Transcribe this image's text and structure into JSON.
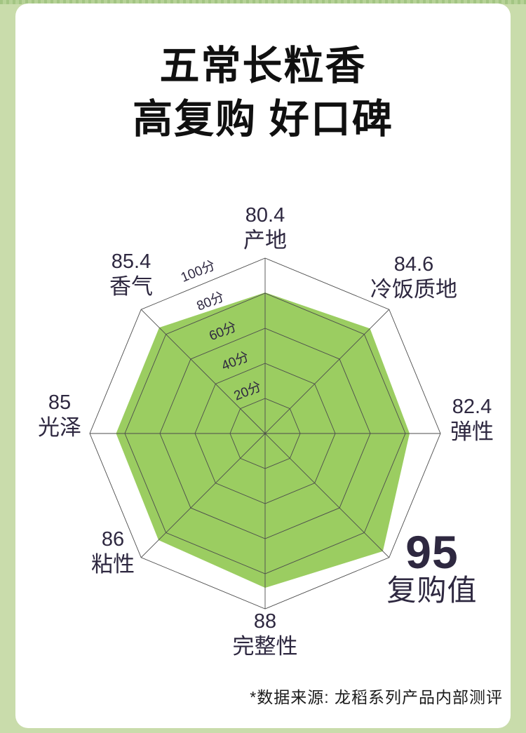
{
  "page": {
    "background_color": "#c9dcab",
    "card_color": "#ffffff"
  },
  "header": {
    "title_line1": "五常长粒香",
    "title_line2": "高复购 好口碑"
  },
  "footnote": "*数据来源: 龙稻系列产品内部测评",
  "chart_data": {
    "type": "radar",
    "title": "",
    "categories": [
      "产地",
      "冷饭质地",
      "弹性",
      "复购值",
      "完整性",
      "粘性",
      "光泽",
      "香气"
    ],
    "values": [
      80.4,
      84.6,
      82.4,
      95,
      88,
      86,
      85,
      85.4
    ],
    "highlight_category": "复购值",
    "rings": [
      20,
      40,
      60,
      80,
      100
    ],
    "ring_labels": [
      "20分",
      "40分",
      "60分",
      "80分",
      "100分"
    ],
    "range": [
      0,
      100
    ],
    "grid": true,
    "legend": "none",
    "fill_color": "#9bcd61",
    "grid_color": "#4c4c4c",
    "label_color": "#2e2840"
  }
}
